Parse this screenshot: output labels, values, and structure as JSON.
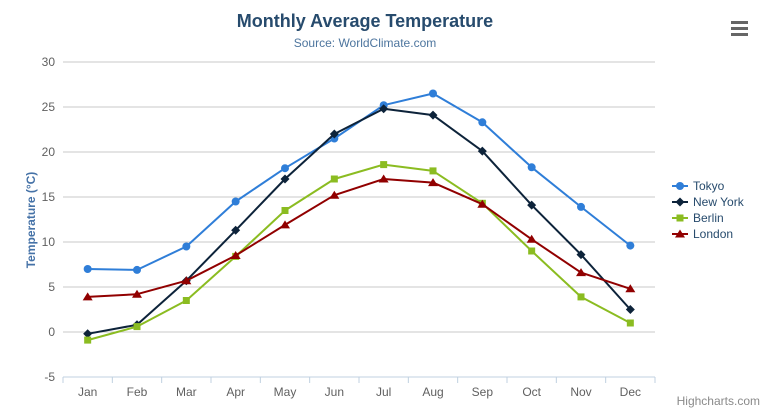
{
  "chart_data": {
    "type": "line",
    "title": "Monthly Average Temperature",
    "subtitle": "Source: WorldClimate.com",
    "xlabel": "",
    "ylabel": "Temperature (°C)",
    "ylim": [
      -5,
      30
    ],
    "yticks": [
      -5,
      0,
      5,
      10,
      15,
      20,
      25,
      30
    ],
    "categories": [
      "Jan",
      "Feb",
      "Mar",
      "Apr",
      "May",
      "Jun",
      "Jul",
      "Aug",
      "Sep",
      "Oct",
      "Nov",
      "Dec"
    ],
    "series": [
      {
        "name": "Tokyo",
        "color": "#2f7ed8",
        "marker": "circle",
        "values": [
          7.0,
          6.9,
          9.5,
          14.5,
          18.2,
          21.5,
          25.2,
          26.5,
          23.3,
          18.3,
          13.9,
          9.6
        ]
      },
      {
        "name": "New York",
        "color": "#0d233a",
        "marker": "diamond",
        "values": [
          -0.2,
          0.8,
          5.7,
          11.3,
          17.0,
          22.0,
          24.8,
          24.1,
          20.1,
          14.1,
          8.6,
          2.5
        ]
      },
      {
        "name": "Berlin",
        "color": "#8bbc21",
        "marker": "square",
        "values": [
          -0.9,
          0.6,
          3.5,
          8.4,
          13.5,
          17.0,
          18.6,
          17.9,
          14.3,
          9.0,
          3.9,
          1.0
        ]
      },
      {
        "name": "London",
        "color": "#910000",
        "marker": "triangle",
        "values": [
          3.9,
          4.2,
          5.7,
          8.5,
          11.9,
          15.2,
          17.0,
          16.6,
          14.2,
          10.3,
          6.6,
          4.8
        ]
      }
    ],
    "grid": true,
    "legend_position": "right"
  },
  "credits_label": "Highcharts.com",
  "context_menu": {
    "icon": "hamburger-icon"
  },
  "theme": {
    "title_color": "#274b6d",
    "subtitle_color": "#4d759e",
    "axis_title_color": "#4572a7",
    "axis_label_color": "#606060",
    "grid_color": "#c8c8c8",
    "axis_line_color": "#c0d0e0",
    "legend_text_color": "#274b6d",
    "credits_color": "#8a8a8a",
    "menu_icon_color": "#666666",
    "background": "#ffffff"
  }
}
